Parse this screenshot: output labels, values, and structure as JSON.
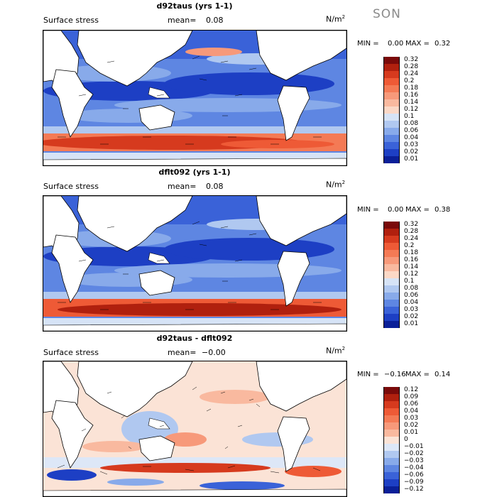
{
  "season": "SON",
  "unit": "N/m",
  "unit_sup": "2",
  "panels": [
    {
      "title": "d92taus (yrs 1-1)",
      "left_label": "Surface stress",
      "mean_label": "mean=",
      "mean_value": "0.08",
      "min_label": "MIN =",
      "min_value": "0.00",
      "max_label": "MAX =",
      "max_value": "0.32",
      "colorbar": [
        {
          "label": "0.32",
          "color": "#7a0a0a"
        },
        {
          "label": "0.28",
          "color": "#b0200e"
        },
        {
          "label": "0.24",
          "color": "#d63a1e"
        },
        {
          "label": "0.2",
          "color": "#ee5a36"
        },
        {
          "label": "0.18",
          "color": "#f47a55"
        },
        {
          "label": "0.16",
          "color": "#f7997a"
        },
        {
          "label": "0.14",
          "color": "#f9b99f"
        },
        {
          "label": "0.12",
          "color": "#fbd8c6"
        },
        {
          "label": "0.1",
          "color": "#d6e3f6"
        },
        {
          "label": "0.08",
          "color": "#b0c8f0"
        },
        {
          "label": "0.06",
          "color": "#88aaea"
        },
        {
          "label": "0.04",
          "color": "#5e86e2"
        },
        {
          "label": "0.03",
          "color": "#3a62d8"
        },
        {
          "label": "0.02",
          "color": "#1d3fc4"
        },
        {
          "label": "0.01",
          "color": "#0a1f98"
        }
      ]
    },
    {
      "title": "dflt092 (yrs 1-1)",
      "left_label": "Surface stress",
      "mean_label": "mean=",
      "mean_value": "0.08",
      "min_label": "MIN =",
      "min_value": "0.00",
      "max_label": "MAX =",
      "max_value": "0.38",
      "colorbar": [
        {
          "label": "0.32",
          "color": "#7a0a0a"
        },
        {
          "label": "0.28",
          "color": "#b0200e"
        },
        {
          "label": "0.24",
          "color": "#d63a1e"
        },
        {
          "label": "0.2",
          "color": "#ee5a36"
        },
        {
          "label": "0.18",
          "color": "#f47a55"
        },
        {
          "label": "0.16",
          "color": "#f7997a"
        },
        {
          "label": "0.14",
          "color": "#f9b99f"
        },
        {
          "label": "0.12",
          "color": "#fbd8c6"
        },
        {
          "label": "0.1",
          "color": "#d6e3f6"
        },
        {
          "label": "0.08",
          "color": "#b0c8f0"
        },
        {
          "label": "0.06",
          "color": "#88aaea"
        },
        {
          "label": "0.04",
          "color": "#5e86e2"
        },
        {
          "label": "0.03",
          "color": "#3a62d8"
        },
        {
          "label": "0.02",
          "color": "#1d3fc4"
        },
        {
          "label": "0.01",
          "color": "#0a1f98"
        }
      ]
    },
    {
      "title": "d92taus - dflt092",
      "left_label": "Surface stress",
      "mean_label": "mean=",
      "mean_value": "−0.00",
      "min_label": "MIN =",
      "min_value": "−0.16",
      "max_label": "MAX =",
      "max_value": "0.14",
      "colorbar": [
        {
          "label": "0.12",
          "color": "#7a0a0a"
        },
        {
          "label": "0.09",
          "color": "#b0200e"
        },
        {
          "label": "0.06",
          "color": "#d63a1e"
        },
        {
          "label": "0.04",
          "color": "#ee5a36"
        },
        {
          "label": "0.03",
          "color": "#f47a55"
        },
        {
          "label": "0.02",
          "color": "#f7997a"
        },
        {
          "label": "0.01",
          "color": "#f9b99f"
        },
        {
          "label": "0",
          "color": "#fbe3d6"
        },
        {
          "label": "−0.01",
          "color": "#dde7f7"
        },
        {
          "label": "−0.02",
          "color": "#b0c8f0"
        },
        {
          "label": "−0.03",
          "color": "#88aaea"
        },
        {
          "label": "−0.04",
          "color": "#5e86e2"
        },
        {
          "label": "−0.06",
          "color": "#3a62d8"
        },
        {
          "label": "−0.09",
          "color": "#1d3fc4"
        },
        {
          "label": "−0.12",
          "color": "#0a1f98"
        }
      ]
    }
  ]
}
